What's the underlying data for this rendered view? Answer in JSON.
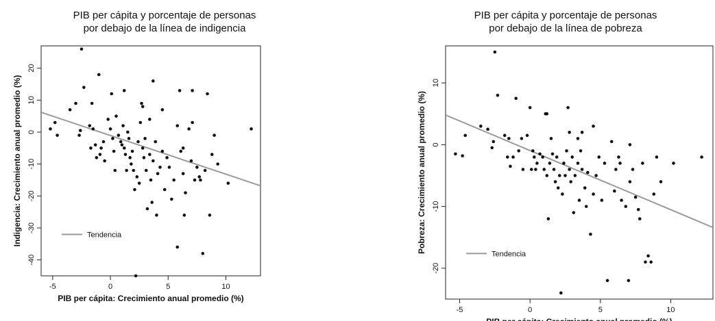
{
  "chart_data": [
    {
      "type": "scatter",
      "title": "PIB per cápita y porcentaje de personas por debajo de la línea de indigencia",
      "title_lines": [
        "PIB per cápita y porcentaje de personas",
        "por debajo de la línea de indigencia"
      ],
      "xlabel": "PIB per cápita: Crecimiento anual promedio (%)",
      "ylabel": "Indigencia: Crecimiento anual promedio (%)",
      "xlim": [
        -6,
        13
      ],
      "ylim": [
        -45,
        27
      ],
      "xticks": [
        -5,
        0,
        5,
        10
      ],
      "yticks": [
        -40,
        -30,
        -20,
        -10,
        0,
        10,
        20
      ],
      "legend": "Tendencia",
      "legend_position": "bottom-left",
      "trend": {
        "x": [
          -6,
          13
        ],
        "y": [
          6.2,
          -16.8
        ]
      },
      "points": [
        [
          -5.2,
          1
        ],
        [
          -4.8,
          3
        ],
        [
          -4.6,
          -1
        ],
        [
          -3.5,
          7
        ],
        [
          -3,
          9
        ],
        [
          -2.7,
          -1
        ],
        [
          -2.5,
          26
        ],
        [
          -2.3,
          14
        ],
        [
          -2.6,
          0.5
        ],
        [
          -1.8,
          2
        ],
        [
          -1.5,
          1
        ],
        [
          -1.7,
          -5
        ],
        [
          -1.6,
          9
        ],
        [
          -1.3,
          -4
        ],
        [
          -1.2,
          -8
        ],
        [
          -1,
          18
        ],
        [
          -0.8,
          -5
        ],
        [
          -0.6,
          -3
        ],
        [
          -0.5,
          -9
        ],
        [
          -0.2,
          4
        ],
        [
          0,
          1
        ],
        [
          0.2,
          -2
        ],
        [
          0.3,
          -6
        ],
        [
          0.4,
          -12
        ],
        [
          0.5,
          5
        ],
        [
          0.7,
          -1
        ],
        [
          0.9,
          -3
        ],
        [
          1,
          -4
        ],
        [
          1.1,
          2
        ],
        [
          1.2,
          -5
        ],
        [
          1.3,
          -7
        ],
        [
          1.4,
          -12
        ],
        [
          1.5,
          0
        ],
        [
          1.6,
          -2
        ],
        [
          1.7,
          -8
        ],
        [
          1.8,
          -10
        ],
        [
          1.9,
          -6
        ],
        [
          2,
          -12
        ],
        [
          2.1,
          -18
        ],
        [
          2.2,
          -45
        ],
        [
          2.3,
          -14
        ],
        [
          2.4,
          -3
        ],
        [
          2.5,
          -16
        ],
        [
          2.6,
          3
        ],
        [
          2.7,
          9
        ],
        [
          2.8,
          -5
        ],
        [
          2.9,
          -8
        ],
        [
          3,
          -2
        ],
        [
          3.1,
          -12
        ],
        [
          3.2,
          -24
        ],
        [
          3.4,
          -7
        ],
        [
          3.5,
          -15
        ],
        [
          3.6,
          -22
        ],
        [
          3.7,
          -9
        ],
        [
          3.9,
          -3
        ],
        [
          4,
          -26
        ],
        [
          4.1,
          -13
        ],
        [
          4.3,
          -11
        ],
        [
          4.5,
          -6
        ],
        [
          4.7,
          -18
        ],
        [
          4.9,
          -8
        ],
        [
          5.1,
          -11
        ],
        [
          5.3,
          -21
        ],
        [
          5.5,
          -15
        ],
        [
          5.8,
          2
        ],
        [
          6,
          13
        ],
        [
          6.1,
          -6
        ],
        [
          6.3,
          -5
        ],
        [
          6.5,
          -19
        ],
        [
          6.8,
          1
        ],
        [
          7,
          -9
        ],
        [
          7.1,
          3
        ],
        [
          7.3,
          -15
        ],
        [
          7.5,
          -11
        ],
        [
          7.7,
          -14
        ],
        [
          7.8,
          -15
        ],
        [
          8,
          -38
        ],
        [
          8.2,
          -12
        ],
        [
          8.4,
          12
        ],
        [
          8.6,
          -26
        ],
        [
          8.8,
          -7
        ],
        [
          9,
          -1
        ],
        [
          9.3,
          -10
        ],
        [
          5.8,
          -36
        ],
        [
          6.4,
          -26
        ],
        [
          10.2,
          -16
        ],
        [
          12.2,
          1
        ],
        [
          6.3,
          -13
        ],
        [
          3.7,
          16
        ],
        [
          1.2,
          13
        ],
        [
          0.1,
          12
        ],
        [
          -0.9,
          -7
        ],
        [
          4.5,
          7
        ],
        [
          2.8,
          8
        ],
        [
          3.4,
          4
        ],
        [
          7.1,
          13
        ]
      ]
    },
    {
      "type": "scatter",
      "title": "PIB per cápita y porcentaje de personas por debajo de la línea de pobreza",
      "title_lines": [
        "PIB per cápita y porcentaje de personas",
        "por debajo de la línea de pobreza"
      ],
      "xlabel": "PIB per cápita: Crecimiento anual promedio (%)",
      "ylabel": "Pobreza: Crecimiento anual promedio (%)",
      "xlim": [
        -6,
        13
      ],
      "ylim": [
        -25,
        16
      ],
      "xticks": [
        -5,
        0,
        5,
        10
      ],
      "yticks": [
        -20,
        -10,
        0,
        10
      ],
      "legend": "Tendencia",
      "legend_position": "bottom-left",
      "trend": {
        "x": [
          -6,
          13
        ],
        "y": [
          4.8,
          -13.4
        ]
      },
      "points": [
        [
          -5.3,
          -1.5
        ],
        [
          -4.8,
          -1.8
        ],
        [
          -4.6,
          1.5
        ],
        [
          -3.5,
          3
        ],
        [
          -3,
          2.5
        ],
        [
          -2.7,
          -0.5
        ],
        [
          -2.5,
          15
        ],
        [
          -2.3,
          8
        ],
        [
          -2.6,
          0.5
        ],
        [
          -1.8,
          1.5
        ],
        [
          -1.5,
          1
        ],
        [
          -1.6,
          -2
        ],
        [
          -1.4,
          -3.5
        ],
        [
          -1.2,
          -2
        ],
        [
          -1,
          7.5
        ],
        [
          -0.8,
          -1
        ],
        [
          -0.6,
          1
        ],
        [
          -0.5,
          -4
        ],
        [
          -0.2,
          1.5
        ],
        [
          0,
          6
        ],
        [
          0.2,
          -1
        ],
        [
          0.3,
          -2
        ],
        [
          0.4,
          -4
        ],
        [
          0.5,
          -3
        ],
        [
          0.7,
          -1.5
        ],
        [
          0.9,
          -2
        ],
        [
          1,
          -4
        ],
        [
          1.1,
          5
        ],
        [
          1.2,
          -5
        ],
        [
          1.3,
          -12
        ],
        [
          1.4,
          -3
        ],
        [
          1.5,
          1
        ],
        [
          1.6,
          -1.5
        ],
        [
          1.7,
          -4
        ],
        [
          1.8,
          -6
        ],
        [
          1.9,
          -2
        ],
        [
          2,
          -7
        ],
        [
          2.1,
          -5
        ],
        [
          2.2,
          -24
        ],
        [
          2.3,
          -8
        ],
        [
          2.4,
          -3
        ],
        [
          2.5,
          -5
        ],
        [
          2.6,
          -1
        ],
        [
          2.7,
          6
        ],
        [
          2.8,
          -4
        ],
        [
          2.9,
          -6
        ],
        [
          3,
          -2
        ],
        [
          3.1,
          -11
        ],
        [
          3.2,
          -5
        ],
        [
          3.4,
          -3
        ],
        [
          3.5,
          -9
        ],
        [
          3.6,
          -1
        ],
        [
          3.7,
          -4
        ],
        [
          3.9,
          -7
        ],
        [
          4,
          -10
        ],
        [
          4.1,
          -4.5
        ],
        [
          4.3,
          -14.5
        ],
        [
          4.5,
          -8
        ],
        [
          4.7,
          -5
        ],
        [
          4.9,
          -2
        ],
        [
          5.1,
          -9
        ],
        [
          5.3,
          -3
        ],
        [
          5.5,
          -22
        ],
        [
          5.8,
          0.5
        ],
        [
          6,
          -7.5
        ],
        [
          6.1,
          -4
        ],
        [
          6.3,
          -2
        ],
        [
          6.5,
          -9
        ],
        [
          6.8,
          -10
        ],
        [
          7,
          -22
        ],
        [
          7.1,
          -6
        ],
        [
          7.3,
          -4
        ],
        [
          7.5,
          -8.5
        ],
        [
          7.7,
          -10.5
        ],
        [
          7.8,
          -12
        ],
        [
          8,
          -3
        ],
        [
          8.2,
          -19
        ],
        [
          8.4,
          -18
        ],
        [
          8.6,
          -19
        ],
        [
          8.8,
          -8
        ],
        [
          9,
          -2
        ],
        [
          9.3,
          -6
        ],
        [
          10.2,
          -3
        ],
        [
          12.2,
          -2
        ],
        [
          6.4,
          -3
        ],
        [
          3.7,
          2
        ],
        [
          1.2,
          5
        ],
        [
          0.1,
          -4
        ],
        [
          4.5,
          3
        ],
        [
          2.8,
          2
        ],
        [
          3.4,
          1
        ],
        [
          7.1,
          0
        ]
      ]
    }
  ]
}
